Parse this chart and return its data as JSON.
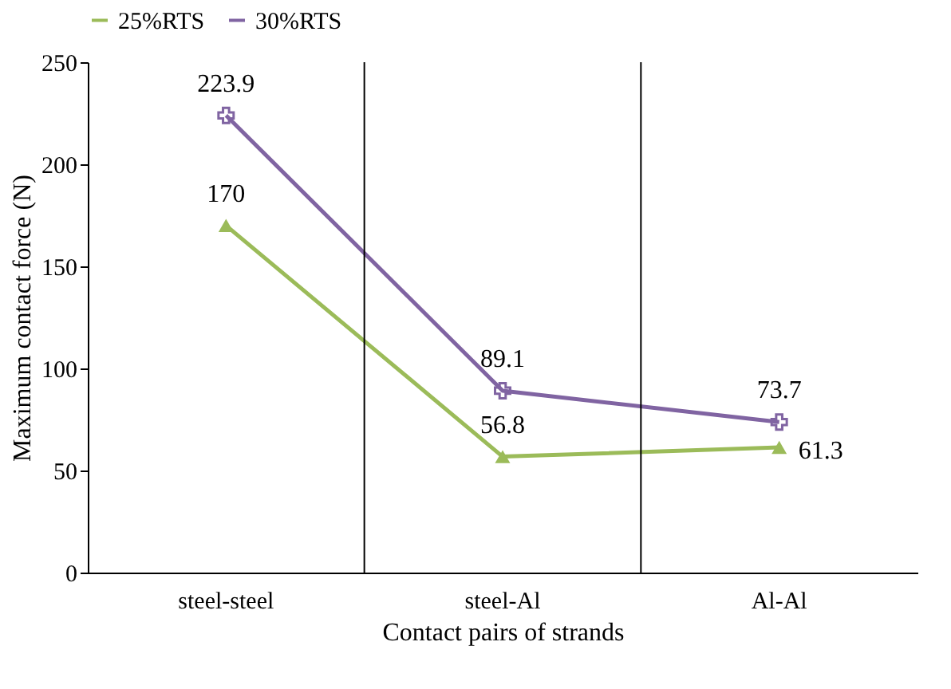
{
  "chart_data": {
    "type": "line",
    "xlabel": "Contact pairs of strands",
    "ylabel": "Maximum contact force (N)",
    "categories": [
      "steel-steel",
      "steel-Al",
      "Al-Al"
    ],
    "series": [
      {
        "name": "25%RTS",
        "color": "#9bbb59",
        "marker": "triangle",
        "values": [
          170,
          56.8,
          61.3
        ]
      },
      {
        "name": "30%RTS",
        "color": "#8064a2",
        "marker": "cross",
        "values": [
          223.9,
          89.1,
          73.7
        ]
      }
    ],
    "ylim": [
      0,
      250
    ],
    "yticks": [
      0,
      50,
      100,
      150,
      200,
      250
    ],
    "grid": "x",
    "legend": "top",
    "data_labels": true,
    "line_style": "solid"
  }
}
